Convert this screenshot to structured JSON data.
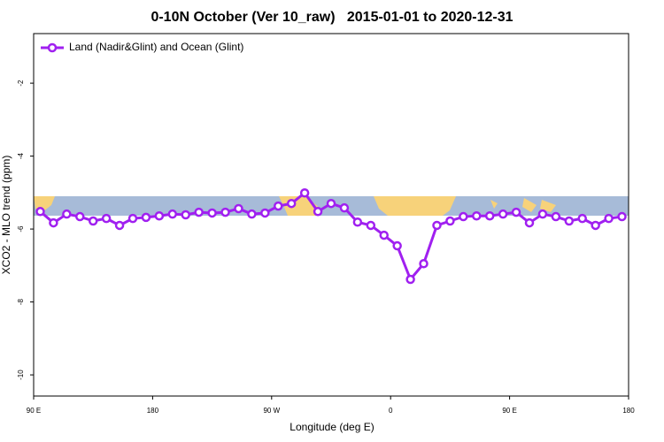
{
  "chart_data": {
    "type": "line",
    "title": "0-10N October (Ver 10_raw)   2015-01-01 to 2020-12-31",
    "x_label": "Longitude (deg E)",
    "y_label": "XCO2 - MLO trend (ppm)",
    "legend": "top-left",
    "xlim": [
      90,
      540
    ],
    "ylim": [
      -10.58,
      -0.64
    ],
    "xticks": [
      {
        "value": 90,
        "label": "90 E"
      },
      180,
      {
        "value": 270,
        "label": "90 W"
      },
      {
        "value": 360,
        "label": "0"
      },
      {
        "value": 450,
        "label": "90 E"
      },
      {
        "value": 540,
        "label": "180"
      }
    ],
    "yticks": [
      -2,
      -4,
      -6,
      -8,
      -10
    ],
    "series": [
      {
        "name": "Land (Nadir&Glint) and Ocean (Glint)",
        "color": "#a020f0",
        "x": [
          95,
          105,
          115,
          125,
          135,
          145,
          155,
          165,
          175,
          185,
          195,
          205,
          215,
          225,
          235,
          245,
          255,
          265,
          275,
          285,
          295,
          305,
          315,
          325,
          335,
          345,
          355,
          365,
          375,
          385,
          395,
          405,
          415,
          425,
          435,
          445,
          455,
          465,
          475,
          485,
          495,
          505,
          515,
          525,
          535
        ],
        "values": [
          -5.52,
          -5.83,
          -5.59,
          -5.66,
          -5.78,
          -5.71,
          -5.9,
          -5.71,
          -5.68,
          -5.64,
          -5.59,
          -5.61,
          -5.54,
          -5.56,
          -5.54,
          -5.44,
          -5.59,
          -5.56,
          -5.37,
          -5.3,
          -5.01,
          -5.52,
          -5.3,
          -5.42,
          -5.81,
          -5.9,
          -6.17,
          -6.46,
          -7.38,
          -6.95,
          -5.9,
          -5.78,
          -5.66,
          -5.64,
          -5.64,
          -5.59,
          -5.54,
          -5.83,
          -5.59,
          -5.66,
          -5.78,
          -5.71,
          -5.9,
          -5.71,
          -5.66
        ]
      }
    ]
  }
}
